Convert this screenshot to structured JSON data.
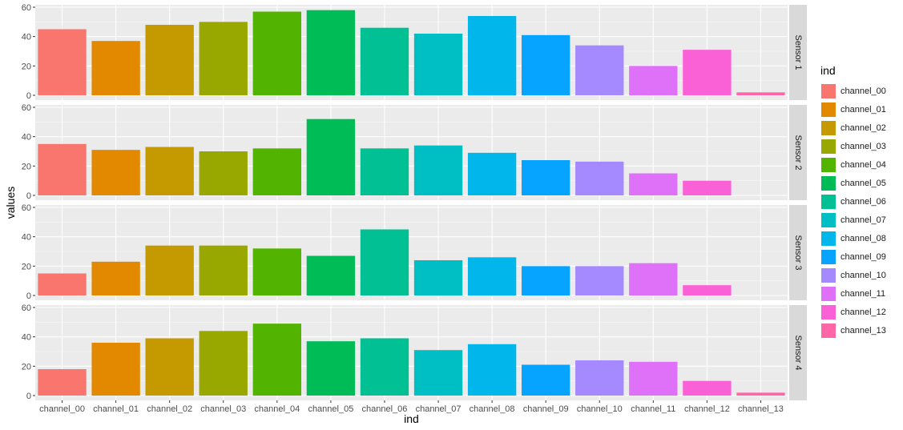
{
  "chart_data": {
    "type": "bar",
    "facet": "rows",
    "xlabel": "ind",
    "ylabel": "values",
    "ylim": [
      0,
      60
    ],
    "yticks": [
      0,
      20,
      40,
      60
    ],
    "categories": [
      "channel_00",
      "channel_01",
      "channel_02",
      "channel_03",
      "channel_04",
      "channel_05",
      "channel_06",
      "channel_07",
      "channel_08",
      "channel_09",
      "channel_10",
      "channel_11",
      "channel_12",
      "channel_13"
    ],
    "colors": [
      "#F8766D",
      "#E38900",
      "#C49A00",
      "#99A800",
      "#53B400",
      "#00BC56",
      "#00C094",
      "#00BFC4",
      "#00B6EB",
      "#06A4FF",
      "#A58AFF",
      "#DF70F8",
      "#FB61D7",
      "#FF66A8"
    ],
    "panels": [
      {
        "name": "Sensor 1",
        "values": [
          45,
          37,
          48,
          50,
          57,
          58,
          46,
          42,
          54,
          41,
          34,
          20,
          31,
          2
        ]
      },
      {
        "name": "Sensor 2",
        "values": [
          35,
          31,
          33,
          30,
          32,
          52,
          32,
          34,
          29,
          24,
          23,
          15,
          10,
          0
        ]
      },
      {
        "name": "Sensor 3",
        "values": [
          15,
          23,
          34,
          34,
          32,
          27,
          45,
          24,
          26,
          20,
          20,
          22,
          7,
          0
        ]
      },
      {
        "name": "Sensor 4",
        "values": [
          18,
          36,
          39,
          44,
          49,
          37,
          39,
          31,
          35,
          21,
          24,
          23,
          10,
          2
        ]
      }
    ],
    "legend": {
      "title": "ind",
      "position": "right"
    },
    "grid": true
  }
}
